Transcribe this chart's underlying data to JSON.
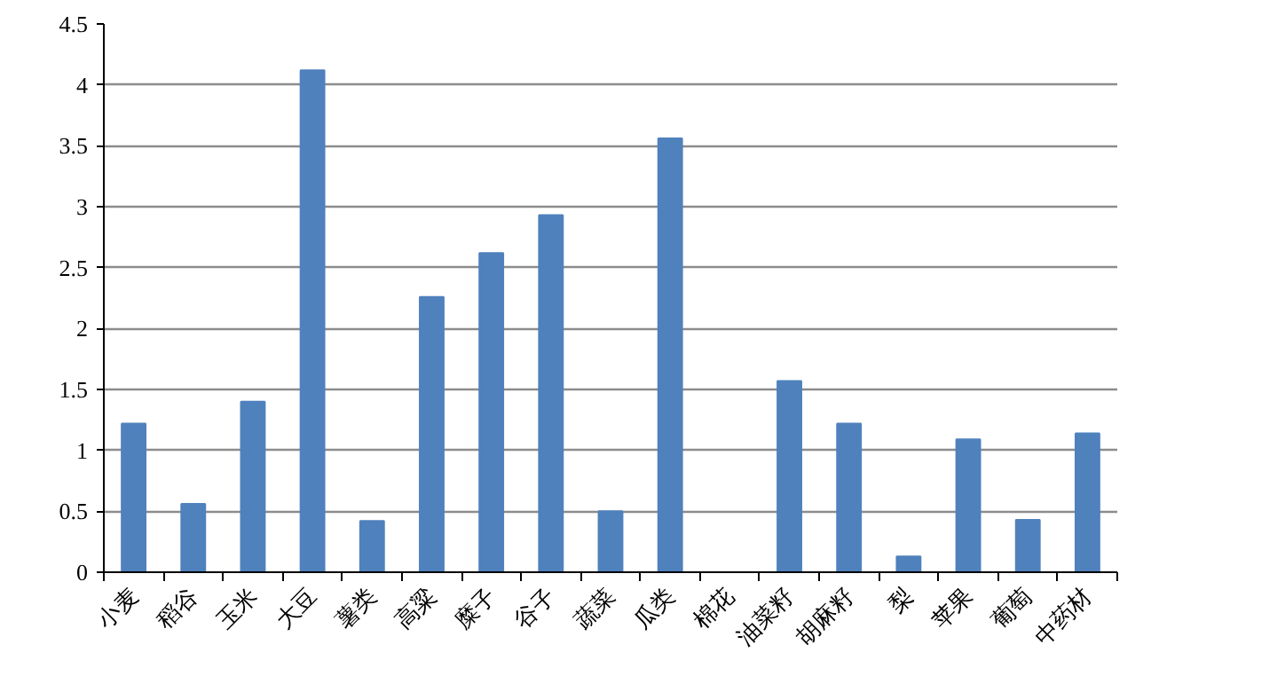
{
  "chart_data": {
    "type": "bar",
    "categories": [
      "小麦",
      "稻谷",
      "玉米",
      "大豆",
      "薯类",
      "高粱",
      "糜子",
      "谷子",
      "蔬菜",
      "瓜类",
      "棉花",
      "油菜籽",
      "胡麻籽",
      "梨",
      "苹果",
      "葡萄",
      "中药材"
    ],
    "values": [
      1.22,
      0.56,
      1.4,
      4.12,
      0.42,
      2.26,
      2.62,
      2.93,
      0.5,
      3.56,
      0,
      1.57,
      1.22,
      0.13,
      1.09,
      0.43,
      1.14
    ],
    "color": "#4f81bd",
    "ylim": [
      0,
      4.5
    ],
    "yticks": [
      0,
      0.5,
      1,
      1.5,
      2,
      2.5,
      3,
      3.5,
      4,
      4.5
    ],
    "grid": "y"
  }
}
